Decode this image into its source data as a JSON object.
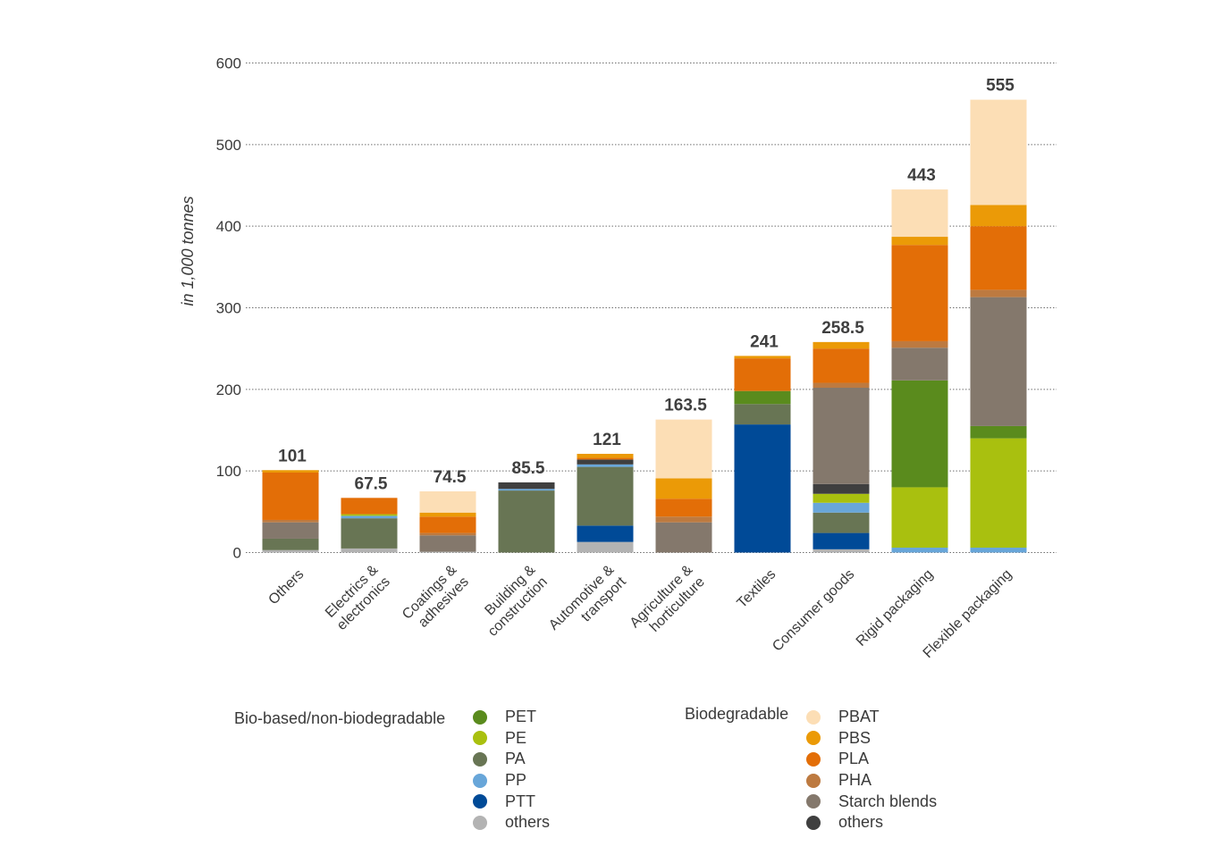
{
  "chart_data": {
    "type": "bar",
    "stacked": true,
    "ylabel": "in 1,000 tonnes",
    "ylim": [
      0,
      600
    ],
    "yticks": [
      0,
      100,
      200,
      300,
      400,
      500,
      600
    ],
    "grid": true,
    "categories": [
      "Others",
      "Electrics & electronics",
      "Coatings & adhesives",
      "Building & construction",
      "Automotive & transport",
      "Agriculture & horticulture",
      "Textiles",
      "Consumer goods",
      "Rigid packaging",
      "Flexible packaging"
    ],
    "totals": [
      "101",
      "67.5",
      "74.5",
      "85.5",
      "121",
      "163.5",
      "241",
      "258.5",
      "443",
      "555"
    ],
    "series": [
      {
        "name": "others",
        "group": "nonbio",
        "color": "#b3b3b3",
        "values": [
          3,
          5,
          1,
          0,
          13,
          0,
          0,
          4,
          0,
          0
        ]
      },
      {
        "name": "PTT",
        "group": "nonbio",
        "color": "#004a97",
        "values": [
          0,
          0,
          0,
          0,
          20,
          0,
          157,
          20,
          0,
          0
        ]
      },
      {
        "name": "PP",
        "group": "nonbio",
        "color": "#68a6d9",
        "values": [
          0,
          0,
          0,
          0,
          0,
          0,
          0,
          0,
          6,
          6
        ]
      },
      {
        "name": "PE",
        "group": "nonbio",
        "color": "#a9c00f",
        "values": [
          0,
          0,
          0,
          0,
          0,
          0,
          0,
          0,
          74,
          134
        ]
      },
      {
        "name": "PA",
        "group": "nonbio",
        "color": "#687554",
        "values": [
          14,
          37,
          0,
          76,
          72,
          0,
          25,
          25,
          0,
          0
        ]
      },
      {
        "name": "PP",
        "group": "nonbio",
        "color": "#68a6d9",
        "values": [
          0,
          3,
          0,
          2,
          3,
          0,
          0,
          12,
          0,
          0
        ]
      },
      {
        "name": "PE",
        "group": "nonbio",
        "color": "#a9c00f",
        "values": [
          0,
          2,
          0,
          0,
          0,
          0,
          0,
          11,
          0,
          0
        ]
      },
      {
        "name": "PET",
        "group": "nonbio",
        "color": "#5a8b1d",
        "values": [
          0,
          0,
          0,
          0,
          0,
          0,
          16,
          0,
          131,
          15
        ]
      },
      {
        "name": "others",
        "group": "bio",
        "color": "#3f3f3f",
        "values": [
          0,
          0,
          0,
          8,
          6,
          0,
          0,
          12,
          0,
          0
        ]
      },
      {
        "name": "Starch blends",
        "group": "bio",
        "color": "#84786c",
        "values": [
          20,
          0,
          20,
          0,
          0,
          37,
          0,
          118,
          40,
          158
        ]
      },
      {
        "name": "PHA",
        "group": "bio",
        "color": "#bd7a40",
        "values": [
          3,
          0,
          3,
          0,
          0,
          7,
          0,
          6,
          8,
          9
        ]
      },
      {
        "name": "PLA",
        "group": "bio",
        "color": "#e36e07",
        "values": [
          58,
          20,
          20,
          0,
          2,
          22,
          40,
          42,
          118,
          78
        ]
      },
      {
        "name": "PBS",
        "group": "bio",
        "color": "#eb9a07",
        "values": [
          3,
          0,
          5,
          0,
          5,
          25,
          3,
          8,
          10,
          26
        ]
      },
      {
        "name": "PBAT",
        "group": "bio",
        "color": "#fcdeb5",
        "values": [
          0,
          0,
          26,
          0,
          0,
          72,
          0,
          0,
          58,
          129
        ]
      }
    ]
  },
  "legend": {
    "nonbio": {
      "title": "Bio-based/non-biodegradable",
      "items": [
        {
          "label": "PET",
          "color": "#5a8b1d"
        },
        {
          "label": "PE",
          "color": "#a9c00f"
        },
        {
          "label": "PA",
          "color": "#687554"
        },
        {
          "label": "PP",
          "color": "#68a6d9"
        },
        {
          "label": "PTT",
          "color": "#004a97"
        },
        {
          "label": "others",
          "color": "#b3b3b3"
        }
      ]
    },
    "bio": {
      "title": "Biodegradable",
      "items": [
        {
          "label": "PBAT",
          "color": "#fcdeb5"
        },
        {
          "label": "PBS",
          "color": "#eb9a07"
        },
        {
          "label": "PLA",
          "color": "#e36e07"
        },
        {
          "label": "PHA",
          "color": "#bd7a40"
        },
        {
          "label": "Starch blends",
          "color": "#84786c"
        },
        {
          "label": "others",
          "color": "#3f3f3f"
        }
      ]
    }
  }
}
